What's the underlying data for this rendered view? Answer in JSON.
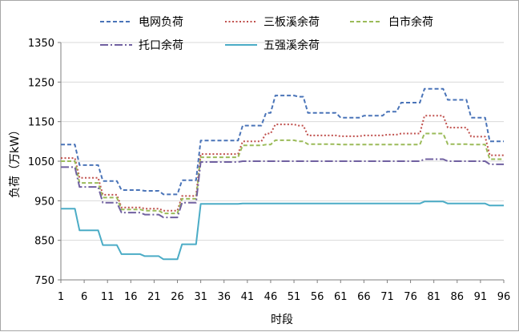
{
  "chart_data": {
    "type": "line",
    "xlabel": "时段",
    "ylabel": "负荷（万kW）",
    "ylim": [
      750,
      1350
    ],
    "xlim": [
      1,
      96
    ],
    "yticks": [
      750,
      850,
      950,
      1050,
      1150,
      1250,
      1350
    ],
    "xticks": [
      1,
      6,
      11,
      16,
      21,
      26,
      31,
      36,
      41,
      46,
      51,
      56,
      61,
      66,
      71,
      76,
      81,
      86,
      91,
      96
    ],
    "grid": "horizontal",
    "legend_position": "top",
    "series": [
      {
        "name": "电网负荷",
        "color": "#4a74b8",
        "style": "dashed",
        "steps": [
          [
            1,
            1092
          ],
          [
            5,
            1040
          ],
          [
            10,
            1000
          ],
          [
            14,
            977
          ],
          [
            19,
            975
          ],
          [
            23,
            966
          ],
          [
            27,
            1002
          ],
          [
            31,
            1102
          ],
          [
            40,
            1140
          ],
          [
            45,
            1172
          ],
          [
            47,
            1216
          ],
          [
            52,
            1213
          ],
          [
            54,
            1172
          ],
          [
            61,
            1160
          ],
          [
            66,
            1165
          ],
          [
            71,
            1175
          ],
          [
            74,
            1198
          ],
          [
            79,
            1233
          ],
          [
            84,
            1205
          ],
          [
            89,
            1160
          ],
          [
            93,
            1100
          ],
          [
            97,
            1142
          ]
        ],
        "end": 96
      },
      {
        "name": "三板溪余荷",
        "color": "#c0504d",
        "style": "dotted",
        "steps": [
          [
            1,
            1058
          ],
          [
            5,
            1008
          ],
          [
            10,
            965
          ],
          [
            14,
            933
          ],
          [
            19,
            930
          ],
          [
            23,
            925
          ],
          [
            27,
            962
          ],
          [
            31,
            1068
          ],
          [
            40,
            1100
          ],
          [
            45,
            1120
          ],
          [
            47,
            1143
          ],
          [
            52,
            1140
          ],
          [
            54,
            1115
          ],
          [
            61,
            1113
          ],
          [
            66,
            1115
          ],
          [
            71,
            1117
          ],
          [
            74,
            1120
          ],
          [
            79,
            1165
          ],
          [
            84,
            1135
          ],
          [
            89,
            1112
          ],
          [
            93,
            1065
          ],
          [
            97,
            1108
          ]
        ],
        "end": 96
      },
      {
        "name": "白市余荷",
        "color": "#9bbb59",
        "style": "dashed",
        "steps": [
          [
            1,
            1050
          ],
          [
            5,
            995
          ],
          [
            10,
            958
          ],
          [
            14,
            928
          ],
          [
            19,
            925
          ],
          [
            23,
            918
          ],
          [
            27,
            955
          ],
          [
            31,
            1060
          ],
          [
            40,
            1090
          ],
          [
            45,
            1092
          ],
          [
            47,
            1103
          ],
          [
            52,
            1100
          ],
          [
            54,
            1093
          ],
          [
            61,
            1092
          ],
          [
            66,
            1092
          ],
          [
            71,
            1092
          ],
          [
            74,
            1092
          ],
          [
            79,
            1120
          ],
          [
            84,
            1093
          ],
          [
            89,
            1092
          ],
          [
            93,
            1055
          ],
          [
            97,
            1090
          ]
        ],
        "end": 96
      },
      {
        "name": "托口余荷",
        "color": "#7060a0",
        "style": "dashdot",
        "steps": [
          [
            1,
            1035
          ],
          [
            5,
            985
          ],
          [
            10,
            945
          ],
          [
            14,
            920
          ],
          [
            19,
            915
          ],
          [
            23,
            908
          ],
          [
            27,
            945
          ],
          [
            31,
            1048
          ],
          [
            40,
            1050
          ],
          [
            45,
            1050
          ],
          [
            47,
            1050
          ],
          [
            52,
            1050
          ],
          [
            54,
            1050
          ],
          [
            61,
            1050
          ],
          [
            66,
            1050
          ],
          [
            71,
            1050
          ],
          [
            74,
            1050
          ],
          [
            79,
            1055
          ],
          [
            84,
            1050
          ],
          [
            89,
            1050
          ],
          [
            93,
            1042
          ],
          [
            97,
            1048
          ]
        ],
        "end": 96
      },
      {
        "name": "五强溪余荷",
        "color": "#4bacc6",
        "style": "solid",
        "steps": [
          [
            1,
            930
          ],
          [
            5,
            875
          ],
          [
            10,
            838
          ],
          [
            14,
            815
          ],
          [
            19,
            810
          ],
          [
            23,
            802
          ],
          [
            27,
            840
          ],
          [
            31,
            942
          ],
          [
            40,
            943
          ],
          [
            45,
            943
          ],
          [
            47,
            943
          ],
          [
            52,
            943
          ],
          [
            54,
            943
          ],
          [
            61,
            943
          ],
          [
            66,
            943
          ],
          [
            71,
            943
          ],
          [
            74,
            943
          ],
          [
            79,
            948
          ],
          [
            84,
            943
          ],
          [
            89,
            943
          ],
          [
            93,
            938
          ],
          [
            97,
            942
          ]
        ],
        "end": 96
      }
    ]
  }
}
